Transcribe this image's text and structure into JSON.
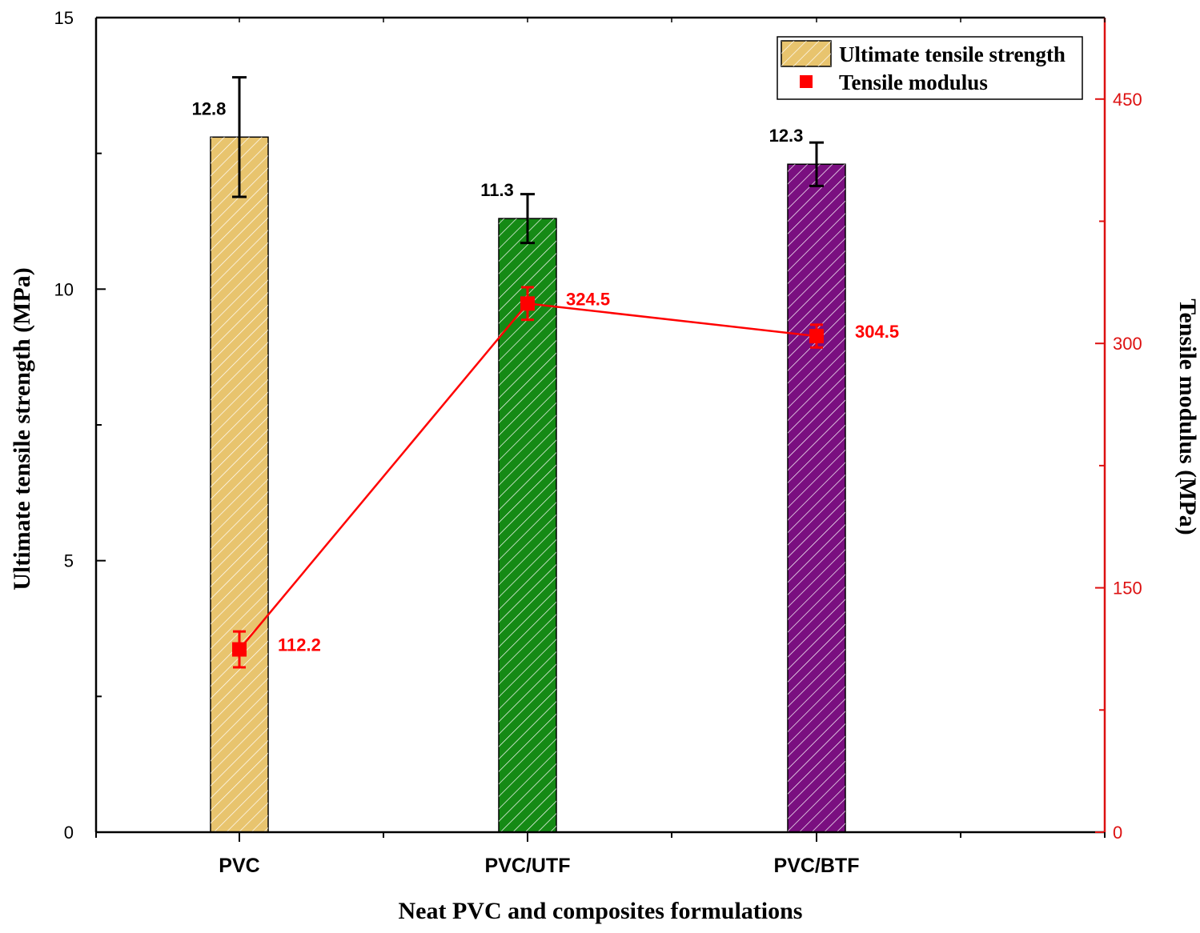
{
  "chart_data": {
    "type": "bar",
    "categories": [
      "PVC",
      "PVC/UTF",
      "PVC/BTF"
    ],
    "xlabel": "Neat PVC and composites formulations",
    "ylabel": "Ultimate tensile strength (MPa)",
    "y2label": "Tensile modulus (MPa)",
    "ylim": [
      0,
      15
    ],
    "y2lim": [
      0,
      500
    ],
    "yticks": [
      "0",
      "5",
      "10",
      "15"
    ],
    "y2ticks": [
      "0",
      "150",
      "300",
      "450"
    ],
    "series": [
      {
        "name": "Ultimate tensile strength",
        "type": "bar",
        "axis": "left",
        "values": [
          12.8,
          11.3,
          12.3
        ],
        "errors": [
          1.1,
          0.45,
          0.4
        ],
        "labels": [
          "12.8",
          "11.3",
          "12.3"
        ],
        "colors": [
          "#e8c46e",
          "#158a15",
          "#7a0f80"
        ]
      },
      {
        "name": "Tensile modulus",
        "type": "line",
        "axis": "right",
        "values": [
          112.2,
          324.5,
          304.5
        ],
        "errors": [
          11,
          10,
          7
        ],
        "labels": [
          "112.2",
          "324.5",
          "304.5"
        ],
        "color": "#ff0000"
      }
    ],
    "legend_position": "top-right",
    "grid": false,
    "axis2_color": "#dd1111"
  }
}
